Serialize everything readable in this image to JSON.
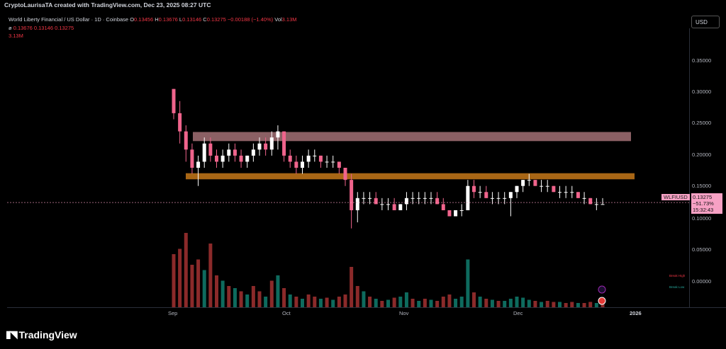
{
  "header": {
    "publisher": "CryptoLaurisaTA created with TradingView.com, Dec 23, 2025 08:27 UTC"
  },
  "legend": {
    "symbol": "World Liberty Financial / US Dollar · 1D · Coinbase",
    "o_label": "O",
    "o_value": "0.13456",
    "h_label": "H",
    "h_value": "0.13676",
    "l_label": "L",
    "l_value": "0.13146",
    "c_label": "C",
    "c_value": "0.13275",
    "change": "−0.00188 (−1.40%)",
    "vol_label": "Vol",
    "vol_value": "3.13M",
    "line2_prefix": "ø",
    "line2_values": "0.13676  0.13146  0.13275",
    "line3": "3.13M"
  },
  "currency_button": "USD",
  "price_axis": [
    "0.35000",
    "0.30000",
    "0.25000",
    "0.20000",
    "0.15000",
    "0.10000",
    "0.05000",
    "0.00000"
  ],
  "time_axis": [
    "Sep",
    "Oct",
    "Nov",
    "Dec",
    "2026"
  ],
  "last_price": {
    "symbol_tag": "WLFIUSD",
    "price": "0.13275",
    "change_pct": "−51.73%",
    "countdown": "15:32:43"
  },
  "volume_labels": {
    "high": "Break High",
    "low": "Break Low"
  },
  "brand": "TradingView",
  "colors": {
    "up": "#ffffff",
    "down": "#f0648c",
    "upper_zone": "#e8a0a6",
    "lower_zone": "#e0881c",
    "vol_up": "#0e6b5e",
    "vol_down": "#8b2a2a"
  },
  "chart_data": {
    "type": "candlestick",
    "ylim": [
      -0.04,
      0.42
    ],
    "zones": [
      {
        "name": "upper",
        "y_top": 0.249,
        "y_bottom": 0.234
      },
      {
        "name": "lower",
        "y_top": 0.181,
        "y_bottom": 0.171
      }
    ],
    "candles": [
      [
        0.32,
        0.32,
        0.27,
        0.28
      ],
      [
        0.28,
        0.3,
        0.23,
        0.25
      ],
      [
        0.25,
        0.26,
        0.2,
        0.22
      ],
      [
        0.22,
        0.23,
        0.18,
        0.19
      ],
      [
        0.19,
        0.21,
        0.16,
        0.2
      ],
      [
        0.2,
        0.24,
        0.19,
        0.23
      ],
      [
        0.23,
        0.24,
        0.2,
        0.21
      ],
      [
        0.21,
        0.22,
        0.19,
        0.2
      ],
      [
        0.2,
        0.22,
        0.19,
        0.21
      ],
      [
        0.21,
        0.23,
        0.2,
        0.22
      ],
      [
        0.22,
        0.23,
        0.2,
        0.21
      ],
      [
        0.21,
        0.22,
        0.19,
        0.2
      ],
      [
        0.2,
        0.21,
        0.19,
        0.21
      ],
      [
        0.21,
        0.23,
        0.2,
        0.22
      ],
      [
        0.22,
        0.24,
        0.21,
        0.23
      ],
      [
        0.23,
        0.24,
        0.21,
        0.22
      ],
      [
        0.22,
        0.25,
        0.21,
        0.24
      ],
      [
        0.24,
        0.26,
        0.22,
        0.25
      ],
      [
        0.25,
        0.25,
        0.2,
        0.21
      ],
      [
        0.21,
        0.22,
        0.19,
        0.2
      ],
      [
        0.2,
        0.21,
        0.18,
        0.19
      ],
      [
        0.19,
        0.21,
        0.18,
        0.2
      ],
      [
        0.2,
        0.22,
        0.19,
        0.21
      ],
      [
        0.21,
        0.22,
        0.2,
        0.21
      ],
      [
        0.21,
        0.21,
        0.19,
        0.2
      ],
      [
        0.2,
        0.21,
        0.19,
        0.2
      ],
      [
        0.2,
        0.21,
        0.19,
        0.2
      ],
      [
        0.2,
        0.2,
        0.18,
        0.19
      ],
      [
        0.19,
        0.19,
        0.16,
        0.17
      ],
      [
        0.17,
        0.18,
        0.09,
        0.12
      ],
      [
        0.12,
        0.15,
        0.1,
        0.14
      ],
      [
        0.14,
        0.15,
        0.13,
        0.14
      ],
      [
        0.14,
        0.15,
        0.13,
        0.14
      ],
      [
        0.14,
        0.15,
        0.13,
        0.13
      ],
      [
        0.13,
        0.14,
        0.12,
        0.13
      ],
      [
        0.13,
        0.14,
        0.12,
        0.13
      ],
      [
        0.13,
        0.14,
        0.12,
        0.12
      ],
      [
        0.12,
        0.13,
        0.12,
        0.13
      ],
      [
        0.13,
        0.15,
        0.12,
        0.14
      ],
      [
        0.14,
        0.15,
        0.13,
        0.14
      ],
      [
        0.14,
        0.15,
        0.13,
        0.14
      ],
      [
        0.14,
        0.15,
        0.13,
        0.14
      ],
      [
        0.14,
        0.15,
        0.13,
        0.14
      ],
      [
        0.14,
        0.15,
        0.13,
        0.13
      ],
      [
        0.13,
        0.14,
        0.12,
        0.12
      ],
      [
        0.12,
        0.12,
        0.11,
        0.11
      ],
      [
        0.11,
        0.12,
        0.11,
        0.12
      ],
      [
        0.12,
        0.13,
        0.11,
        0.12
      ],
      [
        0.12,
        0.17,
        0.12,
        0.16
      ],
      [
        0.16,
        0.17,
        0.14,
        0.15
      ],
      [
        0.15,
        0.16,
        0.14,
        0.15
      ],
      [
        0.15,
        0.16,
        0.14,
        0.14
      ],
      [
        0.14,
        0.15,
        0.13,
        0.14
      ],
      [
        0.14,
        0.15,
        0.13,
        0.14
      ],
      [
        0.14,
        0.15,
        0.13,
        0.14
      ],
      [
        0.14,
        0.15,
        0.11,
        0.15
      ],
      [
        0.15,
        0.16,
        0.14,
        0.16
      ],
      [
        0.16,
        0.17,
        0.15,
        0.17
      ],
      [
        0.17,
        0.18,
        0.16,
        0.17
      ],
      [
        0.17,
        0.17,
        0.16,
        0.16
      ],
      [
        0.16,
        0.17,
        0.15,
        0.16
      ],
      [
        0.16,
        0.17,
        0.15,
        0.16
      ],
      [
        0.16,
        0.16,
        0.15,
        0.15
      ],
      [
        0.15,
        0.16,
        0.14,
        0.15
      ],
      [
        0.15,
        0.16,
        0.14,
        0.15
      ],
      [
        0.15,
        0.16,
        0.14,
        0.15
      ],
      [
        0.15,
        0.15,
        0.14,
        0.14
      ],
      [
        0.14,
        0.15,
        0.13,
        0.14
      ],
      [
        0.14,
        0.14,
        0.13,
        0.13
      ],
      [
        0.13,
        0.14,
        0.12,
        0.13
      ],
      [
        0.13,
        0.14,
        0.13,
        0.13
      ]
    ],
    "volumes": [
      [
        0.5,
        0
      ],
      [
        0.55,
        0
      ],
      [
        0.7,
        0
      ],
      [
        0.4,
        0
      ],
      [
        0.45,
        0
      ],
      [
        0.35,
        1
      ],
      [
        0.6,
        0
      ],
      [
        0.3,
        0
      ],
      [
        0.25,
        1
      ],
      [
        0.2,
        0
      ],
      [
        0.18,
        1
      ],
      [
        0.15,
        0
      ],
      [
        0.12,
        1
      ],
      [
        0.2,
        0
      ],
      [
        0.15,
        0
      ],
      [
        0.1,
        1
      ],
      [
        0.25,
        0
      ],
      [
        0.3,
        1
      ],
      [
        0.18,
        0
      ],
      [
        0.12,
        1
      ],
      [
        0.1,
        0
      ],
      [
        0.08,
        1
      ],
      [
        0.12,
        0
      ],
      [
        0.1,
        0
      ],
      [
        0.08,
        1
      ],
      [
        0.09,
        0
      ],
      [
        0.07,
        1
      ],
      [
        0.1,
        0
      ],
      [
        0.12,
        0
      ],
      [
        0.38,
        0
      ],
      [
        0.2,
        0
      ],
      [
        0.15,
        1
      ],
      [
        0.1,
        0
      ],
      [
        0.08,
        1
      ],
      [
        0.06,
        0
      ],
      [
        0.07,
        1
      ],
      [
        0.09,
        0
      ],
      [
        0.1,
        1
      ],
      [
        0.14,
        1
      ],
      [
        0.08,
        0
      ],
      [
        0.06,
        1
      ],
      [
        0.08,
        0
      ],
      [
        0.07,
        1
      ],
      [
        0.06,
        0
      ],
      [
        0.1,
        0
      ],
      [
        0.12,
        0
      ],
      [
        0.08,
        1
      ],
      [
        0.1,
        1
      ],
      [
        0.45,
        1
      ],
      [
        0.14,
        0
      ],
      [
        0.1,
        1
      ],
      [
        0.08,
        0
      ],
      [
        0.07,
        1
      ],
      [
        0.06,
        0
      ],
      [
        0.06,
        1
      ],
      [
        0.08,
        1
      ],
      [
        0.1,
        1
      ],
      [
        0.09,
        1
      ],
      [
        0.07,
        1
      ],
      [
        0.06,
        0
      ],
      [
        0.05,
        1
      ],
      [
        0.06,
        0
      ],
      [
        0.05,
        0
      ],
      [
        0.05,
        1
      ],
      [
        0.04,
        0
      ],
      [
        0.05,
        0
      ],
      [
        0.04,
        1
      ],
      [
        0.04,
        0
      ],
      [
        0.05,
        0
      ],
      [
        0.04,
        1
      ],
      [
        0.03,
        0
      ]
    ]
  }
}
